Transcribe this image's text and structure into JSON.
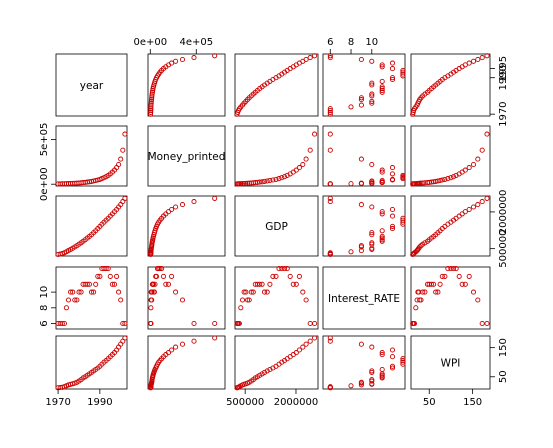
{
  "chart_data": {
    "type": "scatter",
    "subtype": "scatterplot-matrix",
    "point_color": "#cc0000",
    "variables": [
      "year",
      "Money_printed",
      "GDP",
      "Interest_RATE",
      "WPI"
    ],
    "axis_ticks": {
      "year": {
        "values": [
          1970,
          1990
        ],
        "labels": [
          "1970",
          "1990"
        ],
        "ticks_only": [
          1995
        ],
        "ticks_only_labels": [
          "1995"
        ]
      },
      "Money_printed": {
        "values": [
          0,
          500000
        ],
        "labels": [
          "0e+00",
          "5e+05"
        ],
        "top_values": [
          0,
          400000
        ],
        "top_labels": [
          "0e+00",
          "4e+05"
        ]
      },
      "GDP": {
        "values": [
          500000,
          2000000
        ],
        "labels": [
          "500000",
          "2000000"
        ]
      },
      "Interest_RATE": {
        "values": [
          6,
          8,
          10
        ],
        "labels": [
          "6",
          "8",
          "10"
        ]
      },
      "WPI": {
        "values": [
          50,
          150
        ],
        "labels": [
          "50",
          "150"
        ]
      }
    },
    "axis_ranges": {
      "year": [
        1969,
        2003
      ],
      "Money_printed": [
        -20000,
        650000
      ],
      "GDP": [
        200000,
        2650000
      ],
      "Interest_RATE": [
        5.3,
        13.2
      ],
      "WPI": [
        8,
        190
      ]
    },
    "observations": {
      "year": [
        1970,
        1971,
        1972,
        1973,
        1974,
        1975,
        1976,
        1977,
        1978,
        1979,
        1980,
        1981,
        1982,
        1983,
        1984,
        1985,
        1986,
        1987,
        1988,
        1989,
        1990,
        1991,
        1992,
        1993,
        1994,
        1995,
        1996,
        1997,
        1998,
        1999,
        2000,
        2001,
        2002
      ],
      "Money_printed": [
        3000,
        3500,
        4100,
        4800,
        5600,
        6500,
        7600,
        8800,
        10200,
        11800,
        13600,
        15700,
        18000,
        20600,
        23600,
        27000,
        31000,
        35700,
        41000,
        47000,
        54000,
        63000,
        73000,
        84000,
        98000,
        115000,
        135000,
        158000,
        185000,
        220000,
        280000,
        380000,
        560000
      ],
      "GDP": [
        260000,
        280000,
        300000,
        330000,
        370000,
        420000,
        470000,
        520000,
        570000,
        620000,
        680000,
        740000,
        800000,
        860000,
        930000,
        1000000,
        1070000,
        1150000,
        1230000,
        1320000,
        1410000,
        1500000,
        1580000,
        1660000,
        1740000,
        1830000,
        1920000,
        2010000,
        2100000,
        2200000,
        2300000,
        2420000,
        2550000
      ],
      "Interest_RATE": [
        6,
        6,
        6,
        6,
        8,
        9,
        10,
        10,
        9,
        9,
        10,
        10,
        11,
        11,
        11,
        11,
        10,
        10,
        11,
        12,
        12,
        13,
        13,
        13,
        13,
        12,
        11,
        11,
        12,
        10,
        9,
        6,
        6
      ],
      "WPI": [
        12,
        13,
        14,
        16,
        19,
        22,
        24,
        26,
        28,
        31,
        35,
        40,
        46,
        50,
        55,
        60,
        65,
        70,
        75,
        80,
        86,
        93,
        100,
        106,
        112,
        119,
        126,
        133,
        142,
        152,
        162,
        172,
        183
      ]
    }
  }
}
